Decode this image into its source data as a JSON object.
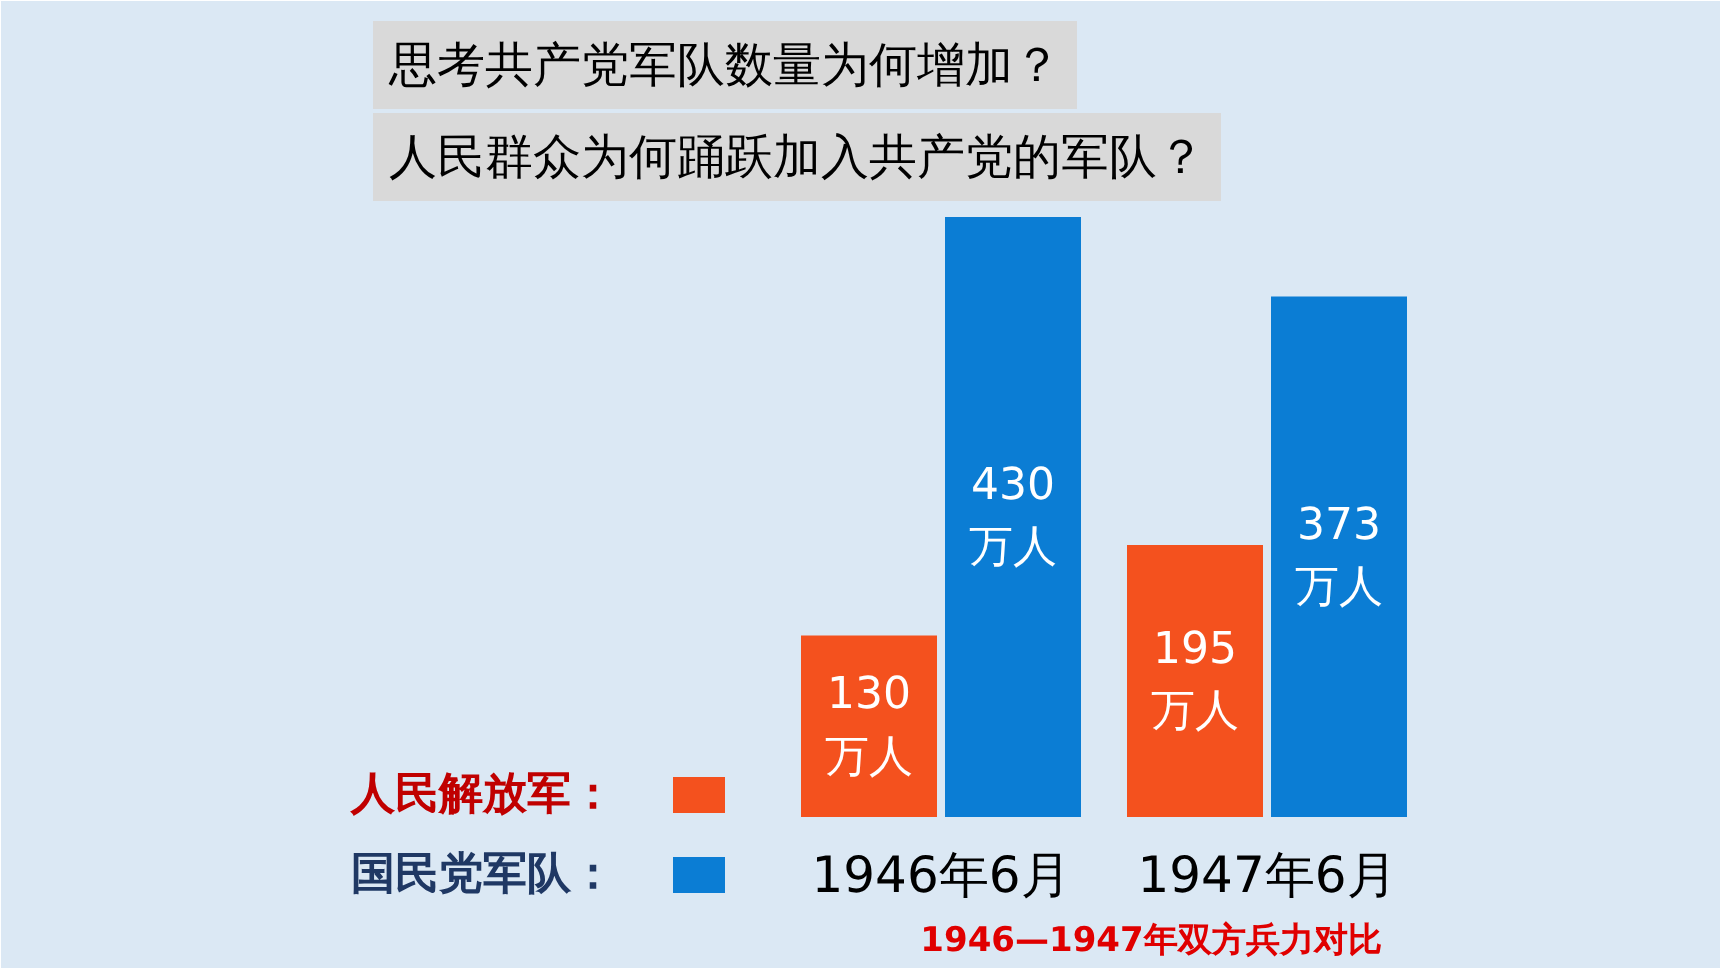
{
  "chart_data": {
    "type": "bar",
    "title": "思考共产党军队数量为何增加？",
    "subtitle": "人民群众为何踊跃加入共产党的军队？",
    "categories": [
      "1946年6月",
      "1947年6月"
    ],
    "series": [
      {
        "name": "人民解放军：",
        "color": "#f4511e",
        "values": [
          130,
          195
        ],
        "value_labels": [
          "130\n万人",
          "195\n万人"
        ]
      },
      {
        "name": "国民党军队：",
        "color": "#0b7dd4",
        "values": [
          430,
          373
        ],
        "value_labels": [
          "430\n万人",
          "373\n万人"
        ]
      }
    ],
    "legend": "bottom left",
    "annotations": [
      "1946—1947年双方兵力对比"
    ]
  }
}
